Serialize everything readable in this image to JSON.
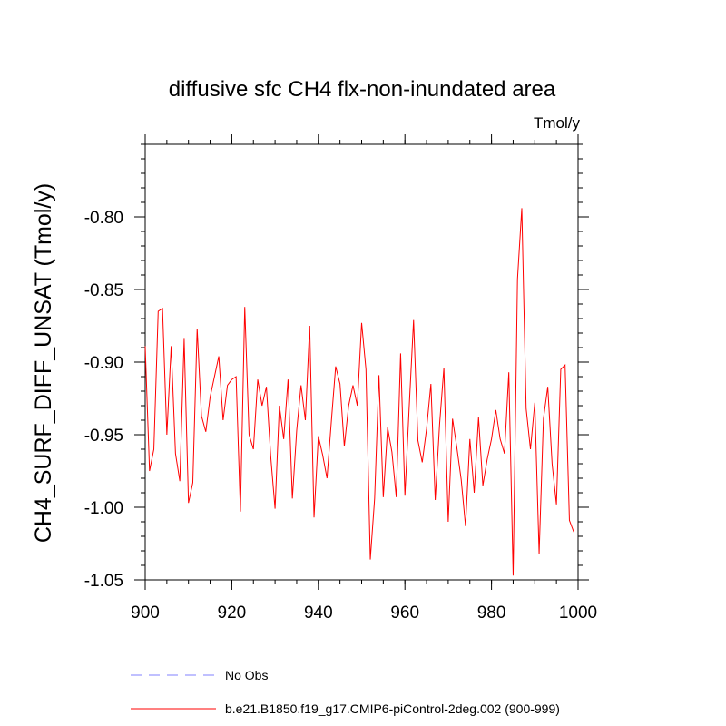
{
  "chart_data": {
    "type": "line",
    "title": "diffusive sfc CH4 flx-non-inundated area",
    "units_label": "Tmol/y",
    "xlabel": "",
    "ylabel": "CH4_SURF_DIFF_UNSAT  (Tmol/y)",
    "xlim": [
      900,
      1000
    ],
    "ylim": [
      -1.05,
      -0.75
    ],
    "x_ticks": [
      900,
      920,
      940,
      960,
      980,
      1000
    ],
    "x_tick_labels": [
      "900",
      "920",
      "940",
      "960",
      "980",
      "1000"
    ],
    "y_ticks": [
      -1.05,
      -1.0,
      -0.95,
      -0.9,
      -0.85,
      -0.8
    ],
    "y_tick_labels": [
      "-1.05",
      "-1.00",
      "-0.95",
      "-0.90",
      "-0.85",
      "-0.80"
    ],
    "x_minor_step": 5,
    "y_minor_step": 0.01,
    "series": [
      {
        "name": "b.e21.B1850.f19_g17.CMIP6-piControl-2deg.002 (900-999)",
        "color": "#ff0000",
        "style": "solid",
        "x_start": 900,
        "x_step": 1,
        "values": [
          -0.889,
          -0.975,
          -0.96,
          -0.865,
          -0.863,
          -0.95,
          -0.889,
          -0.963,
          -0.982,
          -0.884,
          -0.997,
          -0.983,
          -0.877,
          -0.937,
          -0.948,
          -0.924,
          -0.91,
          -0.896,
          -0.94,
          -0.916,
          -0.912,
          -0.91,
          -1.003,
          -0.862,
          -0.95,
          -0.96,
          -0.912,
          -0.93,
          -0.917,
          -0.965,
          -1.001,
          -0.93,
          -0.953,
          -0.912,
          -0.994,
          -0.947,
          -0.916,
          -0.94,
          -0.875,
          -1.007,
          -0.951,
          -0.964,
          -0.98,
          -0.941,
          -0.903,
          -0.915,
          -0.958,
          -0.93,
          -0.916,
          -0.93,
          -0.873,
          -0.905,
          -1.036,
          -0.994,
          -0.909,
          -0.993,
          -0.945,
          -0.962,
          -0.993,
          -0.894,
          -0.992,
          -0.93,
          -0.871,
          -0.954,
          -0.969,
          -0.946,
          -0.915,
          -0.995,
          -0.943,
          -0.904,
          -1.01,
          -0.939,
          -0.959,
          -0.981,
          -1.013,
          -0.953,
          -0.99,
          -0.938,
          -0.985,
          -0.967,
          -0.953,
          -0.933,
          -0.953,
          -0.963,
          -0.907,
          -1.047,
          -0.843,
          -0.794,
          -0.932,
          -0.96,
          -0.928,
          -1.032,
          -0.939,
          -0.917,
          -0.97,
          -0.998,
          -0.905,
          -0.902,
          -1.009,
          -1.017
        ]
      },
      {
        "name": "No Obs",
        "color": "#0000ff",
        "style": "dashed",
        "values": []
      }
    ],
    "legend": [
      {
        "label": "No Obs",
        "color": "#8080ff",
        "style": "dashed"
      },
      {
        "label": "b.e21.B1850.f19_g17.CMIP6-piControl-2deg.002 (900-999)",
        "color": "#ff0000",
        "style": "solid"
      }
    ],
    "legend_position": "bottom-left",
    "grid": false
  }
}
